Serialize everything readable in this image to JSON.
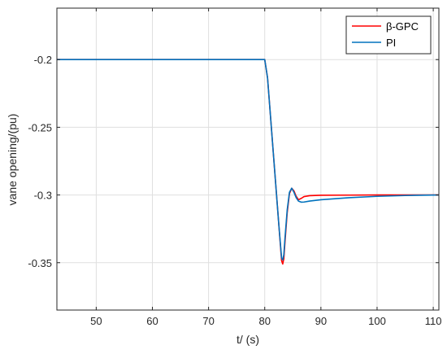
{
  "chart_data": {
    "type": "line",
    "title": "",
    "xlabel": "t/ (s)",
    "ylabel": "vane opening/(pu)",
    "xlim": [
      43,
      111
    ],
    "ylim": [
      -0.385,
      -0.162
    ],
    "x_ticks": [
      50,
      60,
      70,
      80,
      90,
      100,
      110
    ],
    "x_tick_labels": [
      "50",
      "60",
      "70",
      "80",
      "90",
      "100",
      "110"
    ],
    "y_ticks": [
      -0.2,
      -0.25,
      -0.3,
      -0.35
    ],
    "y_tick_labels": [
      "-0.2",
      "-0.25",
      "-0.3",
      "-0.35"
    ],
    "grid": true,
    "legend_position": "top-right",
    "series": [
      {
        "name": "β-GPC",
        "color": "#ff0000",
        "x": [
          43,
          80,
          80.5,
          81,
          81.5,
          82,
          82.5,
          83,
          83.2,
          83.4,
          83.6,
          84,
          84.4,
          84.8,
          85.2,
          85.6,
          86,
          86.5,
          87,
          88,
          90,
          95,
          100,
          105,
          111
        ],
        "y": [
          -0.2,
          -0.2,
          -0.2135,
          -0.2405,
          -0.2675,
          -0.2945,
          -0.3215,
          -0.3485,
          -0.351,
          -0.347,
          -0.335,
          -0.313,
          -0.299,
          -0.295,
          -0.297,
          -0.301,
          -0.3035,
          -0.3025,
          -0.3012,
          -0.3005,
          -0.3002,
          -0.3001,
          -0.3,
          -0.3,
          -0.3
        ]
      },
      {
        "name": "PI",
        "color": "#0072bd",
        "x": [
          43,
          80,
          80.5,
          81,
          81.5,
          82,
          82.5,
          83,
          83.2,
          83.4,
          83.6,
          84,
          84.4,
          84.8,
          85.2,
          85.6,
          86,
          86.5,
          87,
          88,
          90,
          95,
          100,
          105,
          111
        ],
        "y": [
          -0.2,
          -0.2,
          -0.2135,
          -0.2405,
          -0.2675,
          -0.2945,
          -0.3215,
          -0.3465,
          -0.348,
          -0.344,
          -0.332,
          -0.311,
          -0.298,
          -0.295,
          -0.298,
          -0.302,
          -0.3045,
          -0.3053,
          -0.3052,
          -0.3045,
          -0.3035,
          -0.302,
          -0.301,
          -0.3004,
          -0.3
        ]
      }
    ]
  }
}
